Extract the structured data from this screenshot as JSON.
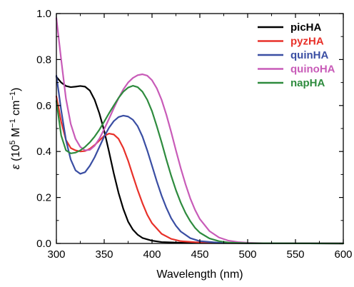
{
  "chart_data": {
    "type": "line",
    "xlabel": "Wavelength (nm)",
    "ylabel": {
      "symbol": "ε",
      "open": " (10",
      "exp1": "5",
      "mid": " M",
      "exp2": "−1",
      "mid2": " cm",
      "exp3": "−1",
      "close": ")"
    },
    "xlim": [
      300,
      600
    ],
    "ylim": [
      0,
      1.0
    ],
    "xticks": [
      300,
      350,
      400,
      450,
      500,
      550,
      600
    ],
    "xtick_labels": [
      "300",
      "350",
      "400",
      "450",
      "500",
      "550",
      "600"
    ],
    "yticks": [
      0.0,
      0.2,
      0.4,
      0.6,
      0.8,
      1.0
    ],
    "ytick_labels": [
      "0.0",
      "0.2",
      "0.4",
      "0.6",
      "0.8",
      "1.0"
    ],
    "grid": false,
    "legend_position": "top-right",
    "series": [
      {
        "name": "picHA",
        "color": "#000000",
        "points": [
          [
            300,
            0.725
          ],
          [
            305,
            0.7
          ],
          [
            310,
            0.685
          ],
          [
            315,
            0.68
          ],
          [
            320,
            0.682
          ],
          [
            325,
            0.685
          ],
          [
            330,
            0.682
          ],
          [
            335,
            0.665
          ],
          [
            340,
            0.625
          ],
          [
            345,
            0.565
          ],
          [
            350,
            0.49
          ],
          [
            355,
            0.4
          ],
          [
            360,
            0.305
          ],
          [
            365,
            0.22
          ],
          [
            370,
            0.15
          ],
          [
            375,
            0.095
          ],
          [
            380,
            0.06
          ],
          [
            385,
            0.038
          ],
          [
            390,
            0.024
          ],
          [
            400,
            0.012
          ],
          [
            410,
            0.006
          ],
          [
            430,
            0.003
          ],
          [
            460,
            0.002
          ],
          [
            500,
            0.001
          ],
          [
            600,
            0.0
          ]
        ]
      },
      {
        "name": "pyzHA",
        "color": "#e8312a",
        "points": [
          [
            300,
            0.64
          ],
          [
            305,
            0.53
          ],
          [
            310,
            0.45
          ],
          [
            315,
            0.415
          ],
          [
            320,
            0.405
          ],
          [
            325,
            0.4
          ],
          [
            330,
            0.402
          ],
          [
            335,
            0.412
          ],
          [
            340,
            0.428
          ],
          [
            345,
            0.448
          ],
          [
            350,
            0.468
          ],
          [
            355,
            0.478
          ],
          [
            360,
            0.474
          ],
          [
            365,
            0.455
          ],
          [
            370,
            0.415
          ],
          [
            375,
            0.36
          ],
          [
            380,
            0.295
          ],
          [
            385,
            0.232
          ],
          [
            390,
            0.175
          ],
          [
            395,
            0.125
          ],
          [
            400,
            0.088
          ],
          [
            410,
            0.042
          ],
          [
            420,
            0.02
          ],
          [
            430,
            0.01
          ],
          [
            450,
            0.004
          ],
          [
            480,
            0.002
          ],
          [
            520,
            0.001
          ],
          [
            600,
            0.0
          ]
        ]
      },
      {
        "name": "quinHA",
        "color": "#3a4ea3",
        "points": [
          [
            300,
            0.73
          ],
          [
            305,
            0.58
          ],
          [
            310,
            0.45
          ],
          [
            315,
            0.365
          ],
          [
            320,
            0.318
          ],
          [
            325,
            0.303
          ],
          [
            330,
            0.31
          ],
          [
            335,
            0.338
          ],
          [
            340,
            0.375
          ],
          [
            345,
            0.42
          ],
          [
            350,
            0.465
          ],
          [
            355,
            0.503
          ],
          [
            360,
            0.532
          ],
          [
            365,
            0.55
          ],
          [
            370,
            0.556
          ],
          [
            375,
            0.552
          ],
          [
            380,
            0.538
          ],
          [
            385,
            0.51
          ],
          [
            390,
            0.465
          ],
          [
            395,
            0.405
          ],
          [
            400,
            0.338
          ],
          [
            405,
            0.27
          ],
          [
            410,
            0.208
          ],
          [
            415,
            0.155
          ],
          [
            420,
            0.11
          ],
          [
            425,
            0.077
          ],
          [
            430,
            0.052
          ],
          [
            440,
            0.023
          ],
          [
            450,
            0.01
          ],
          [
            470,
            0.003
          ],
          [
            500,
            0.001
          ],
          [
            600,
            0.0
          ]
        ]
      },
      {
        "name": "quinoHA",
        "color": "#c85bb8",
        "points": [
          [
            300,
            0.98
          ],
          [
            305,
            0.8
          ],
          [
            310,
            0.63
          ],
          [
            315,
            0.52
          ],
          [
            320,
            0.455
          ],
          [
            325,
            0.42
          ],
          [
            330,
            0.405
          ],
          [
            335,
            0.407
          ],
          [
            340,
            0.425
          ],
          [
            345,
            0.456
          ],
          [
            350,
            0.497
          ],
          [
            355,
            0.542
          ],
          [
            360,
            0.588
          ],
          [
            365,
            0.632
          ],
          [
            370,
            0.67
          ],
          [
            375,
            0.7
          ],
          [
            380,
            0.72
          ],
          [
            385,
            0.732
          ],
          [
            390,
            0.736
          ],
          [
            395,
            0.73
          ],
          [
            400,
            0.71
          ],
          [
            405,
            0.675
          ],
          [
            410,
            0.625
          ],
          [
            415,
            0.56
          ],
          [
            420,
            0.485
          ],
          [
            425,
            0.405
          ],
          [
            430,
            0.328
          ],
          [
            435,
            0.258
          ],
          [
            440,
            0.196
          ],
          [
            445,
            0.146
          ],
          [
            450,
            0.106
          ],
          [
            460,
            0.054
          ],
          [
            470,
            0.026
          ],
          [
            480,
            0.012
          ],
          [
            490,
            0.006
          ],
          [
            500,
            0.003
          ],
          [
            520,
            0.001
          ],
          [
            600,
            0.0
          ]
        ]
      },
      {
        "name": "napHA",
        "color": "#2e8b3e",
        "points": [
          [
            300,
            0.62
          ],
          [
            305,
            0.47
          ],
          [
            310,
            0.405
          ],
          [
            315,
            0.392
          ],
          [
            320,
            0.395
          ],
          [
            325,
            0.405
          ],
          [
            330,
            0.42
          ],
          [
            335,
            0.44
          ],
          [
            340,
            0.465
          ],
          [
            345,
            0.495
          ],
          [
            350,
            0.53
          ],
          [
            355,
            0.566
          ],
          [
            360,
            0.6
          ],
          [
            365,
            0.633
          ],
          [
            370,
            0.66
          ],
          [
            375,
            0.678
          ],
          [
            380,
            0.686
          ],
          [
            385,
            0.68
          ],
          [
            390,
            0.66
          ],
          [
            395,
            0.625
          ],
          [
            400,
            0.575
          ],
          [
            405,
            0.51
          ],
          [
            410,
            0.44
          ],
          [
            415,
            0.365
          ],
          [
            420,
            0.295
          ],
          [
            425,
            0.232
          ],
          [
            430,
            0.178
          ],
          [
            435,
            0.133
          ],
          [
            440,
            0.097
          ],
          [
            445,
            0.068
          ],
          [
            450,
            0.047
          ],
          [
            460,
            0.022
          ],
          [
            470,
            0.01
          ],
          [
            480,
            0.004
          ],
          [
            500,
            0.001
          ],
          [
            600,
            0.0
          ]
        ]
      }
    ]
  }
}
